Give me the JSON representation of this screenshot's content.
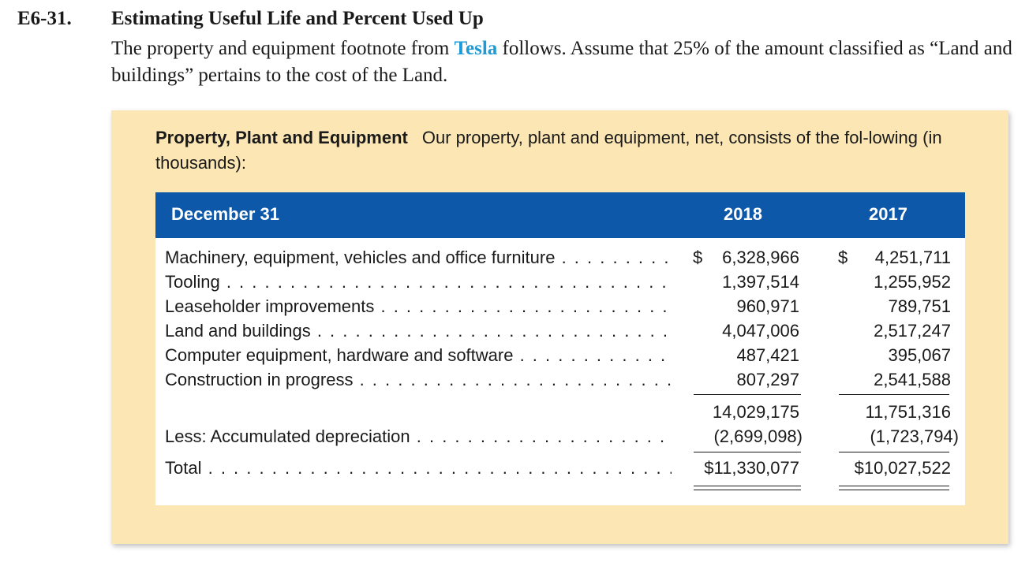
{
  "exercise": {
    "number": "E6-31.",
    "title": "Estimating Useful Life and Percent Used Up",
    "body_before": "The property and equipment footnote from ",
    "company": "Tesla",
    "body_after": " follows. Assume that 25% of the amount classified as “Land and buildings” pertains to the cost of the Land."
  },
  "footnote": {
    "heading": "Property, Plant and Equipment",
    "text": "Our property, plant and equipment, net, consists of the fol-lowing (in thousands):",
    "table": {
      "header": {
        "label": "December 31",
        "col_2018": "2018",
        "col_2017": "2017"
      },
      "rows": [
        {
          "label": "Machinery, equipment, vehicles and office furniture",
          "cur_2018": "$",
          "v2018": "6,328,966",
          "cur_2017": "$",
          "v2017": "4,251,711"
        },
        {
          "label": "Tooling",
          "v2018": "1,397,514",
          "v2017": "1,255,952"
        },
        {
          "label": "Leaseholder improvements",
          "v2018": "960,971",
          "v2017": "789,751"
        },
        {
          "label": "Land and buildings",
          "v2018": "4,047,006",
          "v2017": "2,517,247"
        },
        {
          "label": "Computer equipment, hardware and software",
          "v2018": "487,421",
          "v2017": "395,067"
        },
        {
          "label": "Construction in progress",
          "v2018": "807,297",
          "v2017": "2,541,588"
        }
      ],
      "subtotal": {
        "v2018": "14,029,175",
        "v2017": "11,751,316"
      },
      "accumulated": {
        "label": "Less: Accumulated depreciation",
        "v2018": "(2,699,098)",
        "v2017": "(1,723,794)"
      },
      "total": {
        "label": "Total",
        "v2018": "$11,330,077",
        "v2017": "$10,027,522"
      }
    }
  }
}
